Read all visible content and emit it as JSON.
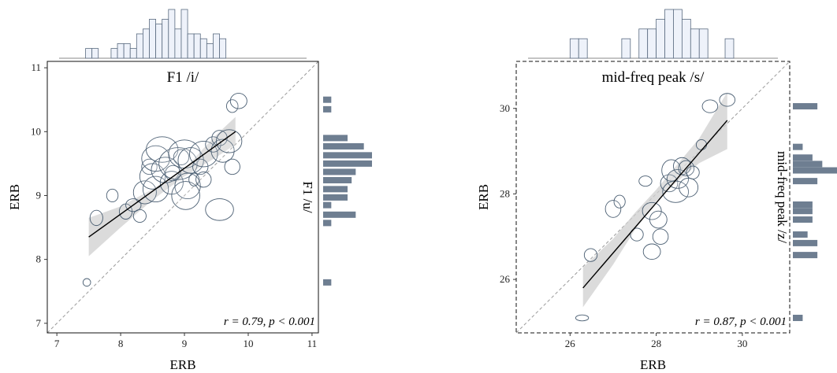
{
  "chart_data": [
    {
      "type": "scatter",
      "title": "F1 /i/",
      "xlabel": "ERB",
      "ylabel": "ERB",
      "side_label": "F1 /u/",
      "xlim": [
        6.85,
        11.1
      ],
      "ylim": [
        6.85,
        11.1
      ],
      "xticks": [
        7,
        8,
        9,
        10,
        11
      ],
      "yticks": [
        7,
        8,
        9,
        10,
        11
      ],
      "annotation": "r = 0.79, p < 0.001",
      "border": "solid",
      "colors": {
        "bar": "#6e7e91",
        "point": "#4a5e72",
        "band": "#cfcfcf",
        "hist_fill": "#eef2fa",
        "hist_stroke": "#5a6b80"
      },
      "fit": {
        "x": [
          7.5,
          9.8
        ],
        "y": [
          8.35,
          10.0
        ]
      },
      "band": {
        "x": [
          7.5,
          8.0,
          8.5,
          9.0,
          9.5,
          9.8
        ],
        "lower": [
          8.05,
          8.5,
          8.93,
          9.3,
          9.6,
          9.8
        ],
        "upper": [
          8.65,
          8.83,
          9.1,
          9.42,
          9.95,
          10.23
        ]
      },
      "points": [
        {
          "x": 7.47,
          "y": 7.64,
          "rx": 0.06,
          "ry": 0.06
        },
        {
          "x": 7.62,
          "y": 8.65,
          "rx": 0.1,
          "ry": 0.12
        },
        {
          "x": 7.87,
          "y": 9.0,
          "rx": 0.09,
          "ry": 0.1
        },
        {
          "x": 8.08,
          "y": 8.75,
          "rx": 0.1,
          "ry": 0.12
        },
        {
          "x": 8.2,
          "y": 8.85,
          "rx": 0.12,
          "ry": 0.1
        },
        {
          "x": 8.3,
          "y": 8.68,
          "rx": 0.1,
          "ry": 0.1
        },
        {
          "x": 8.38,
          "y": 9.05,
          "rx": 0.18,
          "ry": 0.18
        },
        {
          "x": 8.45,
          "y": 9.45,
          "rx": 0.12,
          "ry": 0.12
        },
        {
          "x": 8.55,
          "y": 9.1,
          "rx": 0.2,
          "ry": 0.2
        },
        {
          "x": 8.5,
          "y": 9.3,
          "rx": 0.2,
          "ry": 0.2
        },
        {
          "x": 8.55,
          "y": 9.58,
          "rx": 0.22,
          "ry": 0.2
        },
        {
          "x": 8.65,
          "y": 9.72,
          "rx": 0.25,
          "ry": 0.2
        },
        {
          "x": 8.7,
          "y": 9.4,
          "rx": 0.22,
          "ry": 0.2
        },
        {
          "x": 8.8,
          "y": 9.2,
          "rx": 0.18,
          "ry": 0.18
        },
        {
          "x": 8.82,
          "y": 9.35,
          "rx": 0.12,
          "ry": 0.12
        },
        {
          "x": 8.9,
          "y": 9.5,
          "rx": 0.3,
          "ry": 0.25
        },
        {
          "x": 8.95,
          "y": 9.6,
          "rx": 0.12,
          "ry": 0.12
        },
        {
          "x": 9.0,
          "y": 9.65,
          "rx": 0.25,
          "ry": 0.22
        },
        {
          "x": 9.05,
          "y": 9.15,
          "rx": 0.2,
          "ry": 0.2
        },
        {
          "x": 9.02,
          "y": 9.0,
          "rx": 0.22,
          "ry": 0.22
        },
        {
          "x": 9.1,
          "y": 9.55,
          "rx": 0.2,
          "ry": 0.2
        },
        {
          "x": 9.15,
          "y": 9.25,
          "rx": 0.08,
          "ry": 0.1
        },
        {
          "x": 9.25,
          "y": 9.45,
          "rx": 0.12,
          "ry": 0.12
        },
        {
          "x": 9.3,
          "y": 9.65,
          "rx": 0.22,
          "ry": 0.2
        },
        {
          "x": 9.3,
          "y": 9.25,
          "rx": 0.12,
          "ry": 0.12
        },
        {
          "x": 9.45,
          "y": 9.8,
          "rx": 0.12,
          "ry": 0.12
        },
        {
          "x": 9.55,
          "y": 9.9,
          "rx": 0.12,
          "ry": 0.12
        },
        {
          "x": 9.6,
          "y": 9.7,
          "rx": 0.18,
          "ry": 0.18
        },
        {
          "x": 9.7,
          "y": 9.85,
          "rx": 0.2,
          "ry": 0.18
        },
        {
          "x": 9.75,
          "y": 10.4,
          "rx": 0.09,
          "ry": 0.1
        },
        {
          "x": 9.85,
          "y": 10.48,
          "rx": 0.13,
          "ry": 0.12
        },
        {
          "x": 9.55,
          "y": 8.78,
          "rx": 0.22,
          "ry": 0.17
        },
        {
          "x": 9.75,
          "y": 9.45,
          "rx": 0.12,
          "ry": 0.12
        }
      ],
      "top_hist": {
        "bin_start": 7.45,
        "bin_width": 0.1,
        "counts": [
          2,
          2,
          0,
          0,
          2,
          3,
          3,
          2,
          5,
          6,
          8,
          7,
          8,
          10,
          6,
          10,
          5,
          5,
          4,
          3,
          5,
          4
        ]
      },
      "right_hist": {
        "bins": [
          7.64,
          8.57,
          8.7,
          8.85,
          8.97,
          9.1,
          9.24,
          9.37,
          9.5,
          9.63,
          9.77,
          9.9,
          10.35,
          10.5
        ],
        "counts": [
          2,
          2,
          8,
          2,
          6,
          6,
          7,
          8,
          12,
          12,
          10,
          6,
          2,
          2
        ]
      }
    },
    {
      "type": "scatter",
      "title": "mid-freq peak /s/",
      "xlabel": "ERB",
      "ylabel": "ERB",
      "side_label": "mid-freq peak /z/",
      "xlim": [
        24.75,
        31.1
      ],
      "ylim": [
        24.75,
        31.1
      ],
      "xticks": [
        26,
        28,
        30
      ],
      "yticks": [
        26,
        28,
        30
      ],
      "annotation": "r = 0.87, p < 0.001",
      "border": "dashed",
      "colors": {
        "bar": "#6e7e91",
        "point": "#4a5e72",
        "band": "#cfcfcf",
        "hist_fill": "#eef2fa",
        "hist_stroke": "#5a6b80"
      },
      "fit": {
        "x": [
          26.3,
          29.65
        ],
        "y": [
          25.8,
          29.72
        ]
      },
      "band": {
        "x": [
          26.3,
          27.0,
          27.5,
          28.0,
          28.5,
          29.0,
          29.65
        ],
        "lower": [
          25.35,
          26.35,
          27.15,
          27.83,
          28.3,
          28.72,
          29.05
        ],
        "upper": [
          26.28,
          26.95,
          27.55,
          28.1,
          28.7,
          29.3,
          30.38
        ]
      },
      "points": [
        {
          "x": 26.28,
          "y": 25.1,
          "rx": 0.15,
          "ry": 0.07
        },
        {
          "x": 26.48,
          "y": 26.57,
          "rx": 0.15,
          "ry": 0.15
        },
        {
          "x": 27.0,
          "y": 27.65,
          "rx": 0.18,
          "ry": 0.2
        },
        {
          "x": 27.15,
          "y": 27.82,
          "rx": 0.13,
          "ry": 0.15
        },
        {
          "x": 27.55,
          "y": 27.05,
          "rx": 0.15,
          "ry": 0.15
        },
        {
          "x": 27.75,
          "y": 28.3,
          "rx": 0.15,
          "ry": 0.12
        },
        {
          "x": 27.9,
          "y": 27.6,
          "rx": 0.22,
          "ry": 0.2
        },
        {
          "x": 27.9,
          "y": 26.65,
          "rx": 0.2,
          "ry": 0.18
        },
        {
          "x": 28.05,
          "y": 27.4,
          "rx": 0.2,
          "ry": 0.2
        },
        {
          "x": 28.1,
          "y": 27.0,
          "rx": 0.18,
          "ry": 0.18
        },
        {
          "x": 28.3,
          "y": 28.25,
          "rx": 0.2,
          "ry": 0.2
        },
        {
          "x": 28.35,
          "y": 28.55,
          "rx": 0.22,
          "ry": 0.25
        },
        {
          "x": 28.45,
          "y": 28.05,
          "rx": 0.3,
          "ry": 0.25
        },
        {
          "x": 28.5,
          "y": 28.35,
          "rx": 0.25,
          "ry": 0.22
        },
        {
          "x": 28.6,
          "y": 28.65,
          "rx": 0.2,
          "ry": 0.2
        },
        {
          "x": 28.7,
          "y": 28.6,
          "rx": 0.18,
          "ry": 0.18
        },
        {
          "x": 28.75,
          "y": 28.15,
          "rx": 0.22,
          "ry": 0.22
        },
        {
          "x": 28.85,
          "y": 28.5,
          "rx": 0.15,
          "ry": 0.15
        },
        {
          "x": 29.05,
          "y": 29.15,
          "rx": 0.12,
          "ry": 0.12
        },
        {
          "x": 29.25,
          "y": 30.05,
          "rx": 0.18,
          "ry": 0.15
        },
        {
          "x": 29.65,
          "y": 30.2,
          "rx": 0.18,
          "ry": 0.15
        }
      ],
      "top_hist": {
        "bin_start": 26.0,
        "bin_width": 0.2,
        "counts": [
          2,
          2,
          0,
          0,
          0,
          0,
          2,
          0,
          3,
          3,
          4,
          5,
          5,
          4,
          3,
          3,
          0,
          0,
          2
        ]
      },
      "right_hist": {
        "bins": [
          25.1,
          26.57,
          26.85,
          27.05,
          27.4,
          27.6,
          27.75,
          28.3,
          28.55,
          28.7,
          28.85,
          29.1,
          30.05
        ],
        "counts": [
          2,
          5,
          5,
          3,
          4,
          4,
          4,
          5,
          9,
          6,
          4,
          2,
          5
        ]
      }
    }
  ]
}
